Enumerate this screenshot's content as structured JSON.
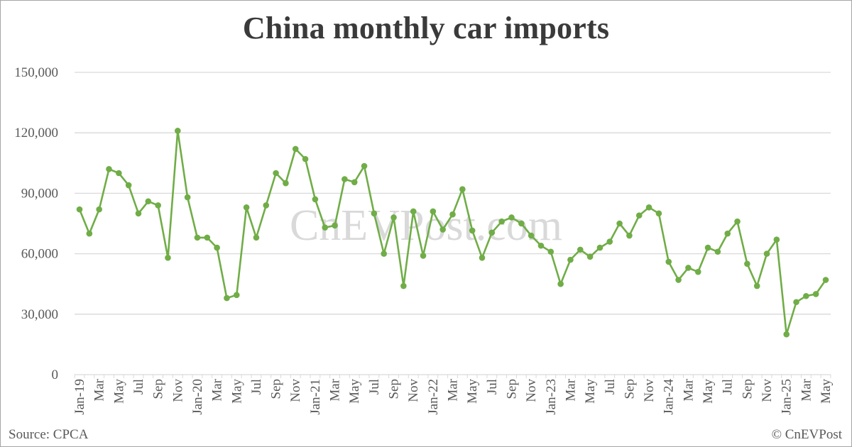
{
  "title": "China monthly car imports",
  "source": "Source: CPCA",
  "copyright": "© CnEVPost",
  "watermark": "CnEVPost.com",
  "colors": {
    "line": "#70ad47",
    "grid": "#d9d9d9",
    "text": "#595959",
    "title": "#3a3a3a"
  },
  "chart_data": {
    "type": "line",
    "title": "China monthly car imports",
    "xlabel": "",
    "ylabel": "",
    "ylim": [
      0,
      150000
    ],
    "yticks": [
      0,
      30000,
      60000,
      90000,
      120000,
      150000
    ],
    "ytick_labels": [
      "0",
      "30,000",
      "60,000",
      "90,000",
      "120,000",
      "150,000"
    ],
    "grid": true,
    "legend": "none",
    "x": [
      "Jan-19",
      "Feb-19",
      "Mar-19",
      "Apr-19",
      "May-19",
      "Jun-19",
      "Jul-19",
      "Aug-19",
      "Sep-19",
      "Oct-19",
      "Nov-19",
      "Dec-19",
      "Jan-20",
      "Feb-20",
      "Mar-20",
      "Apr-20",
      "May-20",
      "Jun-20",
      "Jul-20",
      "Aug-20",
      "Sep-20",
      "Oct-20",
      "Nov-20",
      "Dec-20",
      "Jan-21",
      "Feb-21",
      "Mar-21",
      "Apr-21",
      "May-21",
      "Jun-21",
      "Jul-21",
      "Aug-21",
      "Sep-21",
      "Oct-21",
      "Nov-21",
      "Dec-21",
      "Jan-22",
      "Feb-22",
      "Mar-22",
      "Apr-22",
      "May-22",
      "Jun-22",
      "Jul-22",
      "Aug-22",
      "Sep-22",
      "Oct-22",
      "Nov-22",
      "Dec-22",
      "Jan-23",
      "Feb-23",
      "Mar-23",
      "Apr-23",
      "May-23",
      "Jun-23",
      "Jul-23",
      "Aug-23",
      "Sep-23",
      "Oct-23",
      "Nov-23",
      "Dec-23",
      "Jan-24",
      "Feb-24",
      "Mar-24",
      "Apr-24",
      "May-24",
      "Jun-24",
      "Jul-24",
      "Aug-24",
      "Sep-24",
      "Oct-24",
      "Nov-24",
      "Dec-24",
      "Jan-25",
      "Feb-25",
      "Mar-25",
      "Apr-25",
      "May-25"
    ],
    "x_tick_labels": [
      "Jan-19",
      "Mar",
      "May",
      "Jul",
      "Sep",
      "Nov",
      "Jan-20",
      "Mar",
      "May",
      "Jul",
      "Sep",
      "Nov",
      "Jan-21",
      "Mar",
      "May",
      "Jul",
      "Sep",
      "Nov",
      "Jan-22",
      "Mar",
      "May",
      "Jul",
      "Sep",
      "Nov",
      "Jan-23",
      "Mar",
      "May",
      "Jul",
      "Sep",
      "Nov",
      "Jan-24",
      "Mar",
      "May",
      "Jul",
      "Sep",
      "Nov",
      "Jan-25",
      "Mar",
      "May"
    ],
    "series": [
      {
        "name": "Car imports",
        "color": "#70ad47",
        "values": [
          82000,
          70000,
          82000,
          102000,
          100000,
          94000,
          80000,
          86000,
          84000,
          58000,
          121000,
          88000,
          68000,
          68000,
          63000,
          38000,
          39500,
          83000,
          68000,
          84000,
          100000,
          95000,
          112000,
          107000,
          87000,
          73000,
          74000,
          97000,
          95500,
          103500,
          80000,
          60000,
          78000,
          44000,
          81000,
          59000,
          81000,
          72000,
          79500,
          92000,
          71500,
          58000,
          70500,
          76000,
          78000,
          75000,
          69000,
          64000,
          61000,
          45000,
          57000,
          62000,
          58500,
          63000,
          66000,
          75000,
          69000,
          79000,
          83000,
          80000,
          56000,
          47000,
          53000,
          51000,
          63000,
          61000,
          70000,
          76000,
          55000,
          44000,
          60000,
          67000,
          20000,
          36000,
          39000,
          40000,
          47000
        ]
      }
    ]
  }
}
